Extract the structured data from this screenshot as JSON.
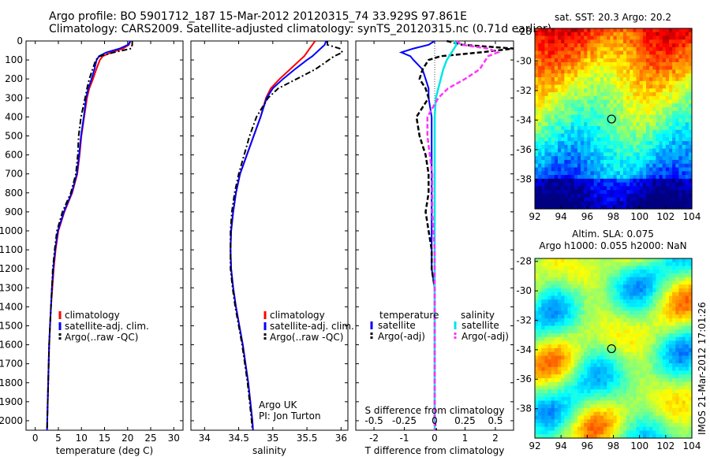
{
  "header": {
    "line1": "Argo profile: BO 5901712_187 15-Mar-2012 20120315_74 33.929S 97.861E",
    "line2": "Climatology: CARS2009. Satellite-adjusted climatology: synTS_20120315.nc (0.71d earlier)"
  },
  "side_caption": "IMOS 21-Mar-2012 17:01:26",
  "colors": {
    "climatology": "#ff0000",
    "satellite": "#0000ff",
    "argo": "#000000",
    "satellite_S": "#00e5e5",
    "argo_S": "#ff33ff"
  },
  "chart_data": [
    {
      "type": "line",
      "name": "temperature-profile",
      "xlabel": "temperature (deg C)",
      "ylabel": "",
      "xlim": [
        -2,
        32
      ],
      "ylim": [
        2050,
        0
      ],
      "xticks": [
        "0",
        "5",
        "10",
        "15",
        "20",
        "25",
        "30"
      ],
      "yticks": [
        "0",
        "100",
        "200",
        "300",
        "400",
        "500",
        "600",
        "700",
        "800",
        "900",
        "1000",
        "1100",
        "1200",
        "1300",
        "1400",
        "1500",
        "1600",
        "1700",
        "1800",
        "1900",
        "2000"
      ],
      "legend": [
        "climatology",
        "satellite-adj. clim.",
        "Argo(..raw -QC)"
      ],
      "depth": [
        0,
        20,
        40,
        60,
        80,
        100,
        150,
        200,
        250,
        300,
        400,
        500,
        600,
        700,
        800,
        900,
        1000,
        1100,
        1200,
        1300,
        1400,
        1500,
        1600,
        1700,
        1800,
        1900,
        2000,
        2050
      ],
      "series": [
        {
          "name": "climatology",
          "values": [
            20.6,
            20.3,
            19.0,
            16.5,
            14.6,
            14.0,
            13.2,
            12.5,
            11.7,
            11.2,
            10.6,
            10.0,
            9.6,
            9.1,
            8.0,
            6.3,
            5.0,
            4.4,
            4.0,
            3.7,
            3.4,
            3.2,
            3.0,
            2.9,
            2.8,
            2.7,
            2.6,
            2.55
          ]
        },
        {
          "name": "satellite-adj. clim.",
          "values": [
            20.6,
            20.1,
            18.3,
            15.4,
            13.8,
            13.3,
            12.8,
            12.2,
            11.5,
            11.0,
            10.5,
            9.9,
            9.5,
            9.0,
            7.9,
            6.2,
            4.9,
            4.3,
            3.9,
            3.6,
            3.4,
            3.2,
            3.0,
            2.9,
            2.8,
            2.7,
            2.6,
            2.55
          ]
        },
        {
          "name": "Argo(..raw -QC)",
          "values": [
            21.0,
            21.0,
            20.8,
            17.0,
            14.0,
            13.1,
            12.4,
            11.7,
            11.2,
            10.8,
            9.9,
            9.4,
            9.2,
            8.8,
            7.7,
            5.9,
            4.7,
            4.2,
            3.8,
            3.6,
            3.4,
            3.2,
            3.0,
            2.9,
            2.8,
            2.7,
            2.6,
            2.6
          ]
        }
      ]
    },
    {
      "type": "line",
      "name": "salinity-profile",
      "xlabel": "salinity",
      "ylabel": "",
      "xlim": [
        33.8,
        36.1
      ],
      "ylim": [
        2050,
        0
      ],
      "xticks": [
        "34",
        "34.5",
        "35",
        "35.5",
        "36"
      ],
      "legend": [
        "climatology",
        "satellite-adj. clim.",
        "Argo(..raw -QC)"
      ],
      "annotation": [
        "Argo UK",
        "PI: Jon Turton"
      ],
      "depth": [
        0,
        20,
        40,
        60,
        80,
        100,
        150,
        200,
        250,
        300,
        400,
        500,
        600,
        700,
        800,
        900,
        1000,
        1100,
        1200,
        1300,
        1400,
        1500,
        1600,
        1700,
        1800,
        1900,
        2000,
        2050
      ],
      "series": [
        {
          "name": "climatology",
          "values": [
            35.62,
            35.58,
            35.54,
            35.5,
            35.46,
            35.4,
            35.25,
            35.1,
            34.97,
            34.9,
            34.82,
            34.72,
            34.62,
            34.52,
            34.46,
            34.42,
            34.39,
            34.38,
            34.39,
            34.42,
            34.46,
            34.51,
            34.56,
            34.6,
            34.64,
            34.67,
            34.7,
            34.71
          ]
        },
        {
          "name": "satellite-adj. clim.",
          "values": [
            35.78,
            35.76,
            35.7,
            35.64,
            35.58,
            35.5,
            35.32,
            35.15,
            35.0,
            34.91,
            34.82,
            34.72,
            34.62,
            34.52,
            34.46,
            34.42,
            34.39,
            34.38,
            34.39,
            34.42,
            34.46,
            34.51,
            34.56,
            34.6,
            34.64,
            34.67,
            34.7,
            34.71
          ]
        },
        {
          "name": "Argo(..raw -QC)",
          "values": [
            35.8,
            35.8,
            35.98,
            36.02,
            35.9,
            35.82,
            35.62,
            35.35,
            35.08,
            34.93,
            34.76,
            34.66,
            34.58,
            34.5,
            34.44,
            34.4,
            34.38,
            34.38,
            34.38,
            34.41,
            34.45,
            34.5,
            34.55,
            34.59,
            34.63,
            34.66,
            34.69,
            34.7
          ]
        }
      ]
    },
    {
      "type": "line",
      "name": "difference-profile",
      "xlabel": "T difference from climatology",
      "xlabel_top": "S difference from climatology",
      "ylabel": "",
      "xlim": [
        -2.6,
        2.6
      ],
      "ylim": [
        2050,
        0
      ],
      "xticks_bottom": [
        "-2",
        "-1",
        "0",
        "1",
        "2"
      ],
      "xticks_top": [
        "-0.5",
        "-0.25",
        "0",
        "0.25",
        "0.5"
      ],
      "legend_temperature_title": "temperature",
      "legend_salinity_title": "salinity",
      "legend": [
        "satellite",
        "Argo(-adj)",
        "satellite",
        "Argo(-adj)"
      ],
      "depth": [
        0,
        20,
        40,
        60,
        80,
        100,
        150,
        200,
        250,
        300,
        400,
        500,
        600,
        700,
        800,
        900,
        1000,
        1100,
        1200,
        1300,
        1400,
        1500,
        1600,
        1700,
        1800,
        1900,
        2000,
        2050
      ],
      "series": [
        {
          "name": "satellite",
          "quantity": "T",
          "values": [
            0,
            -0.2,
            -0.7,
            -1.1,
            -0.8,
            -0.7,
            -0.4,
            -0.3,
            -0.2,
            -0.2,
            -0.1,
            -0.1,
            -0.1,
            -0.1,
            -0.1,
            -0.1,
            -0.1,
            -0.1,
            -0.1,
            0,
            0,
            0,
            0,
            0,
            0,
            0,
            0,
            0
          ]
        },
        {
          "name": "Argo(-adj)",
          "quantity": "T",
          "values": [
            0.4,
            0.9,
            2.6,
            1.5,
            0.2,
            -0.2,
            -0.4,
            -0.5,
            -0.3,
            -0.2,
            -0.6,
            -0.5,
            -0.3,
            -0.2,
            -0.2,
            -0.3,
            -0.2,
            -0.1,
            -0.1,
            0,
            0,
            0,
            0,
            0,
            0,
            0,
            0,
            0.05
          ]
        },
        {
          "name": "satellite",
          "quantity": "S",
          "values": [
            0.16,
            0.18,
            0.16,
            0.14,
            0.12,
            0.1,
            0.07,
            0.05,
            0.03,
            0.01,
            0,
            0,
            0,
            0,
            0,
            0,
            0,
            0,
            0,
            0,
            0,
            0,
            0,
            0,
            0,
            0,
            0,
            0
          ]
        },
        {
          "name": "Argo(-adj)",
          "quantity": "S",
          "values": [
            0.18,
            0.22,
            0.44,
            0.52,
            0.44,
            0.42,
            0.37,
            0.25,
            0.11,
            0.03,
            -0.06,
            -0.06,
            -0.04,
            -0.02,
            -0.02,
            -0.02,
            -0.01,
            0,
            0,
            0,
            0,
            0,
            0,
            0,
            0,
            0,
            0,
            0
          ]
        }
      ]
    },
    {
      "type": "heatmap",
      "name": "sst-map",
      "title": "sat. SST: 20.3 Argo: 20.2",
      "xticks": [
        "92",
        "94",
        "96",
        "98",
        "100",
        "102",
        "104"
      ],
      "yticks": [
        "-28",
        "-30",
        "-32",
        "-34",
        "-36",
        "-38"
      ],
      "xlim": [
        92,
        104
      ],
      "ylim": [
        -40,
        -27.8
      ],
      "marker": {
        "lon": 97.861,
        "lat": -33.929
      }
    },
    {
      "type": "heatmap",
      "name": "sla-map",
      "title_line1": "Altim. SLA: 0.075",
      "title_line2": "Argo h1000: 0.055 h2000: NaN",
      "xticks": [
        "92",
        "94",
        "96",
        "98",
        "100",
        "102",
        "104"
      ],
      "yticks": [
        "-28",
        "-30",
        "-32",
        "-34",
        "-36",
        "-38"
      ],
      "xlim": [
        92,
        104
      ],
      "ylim": [
        -40,
        -27.8
      ],
      "marker": {
        "lon": 97.861,
        "lat": -33.929
      }
    }
  ]
}
